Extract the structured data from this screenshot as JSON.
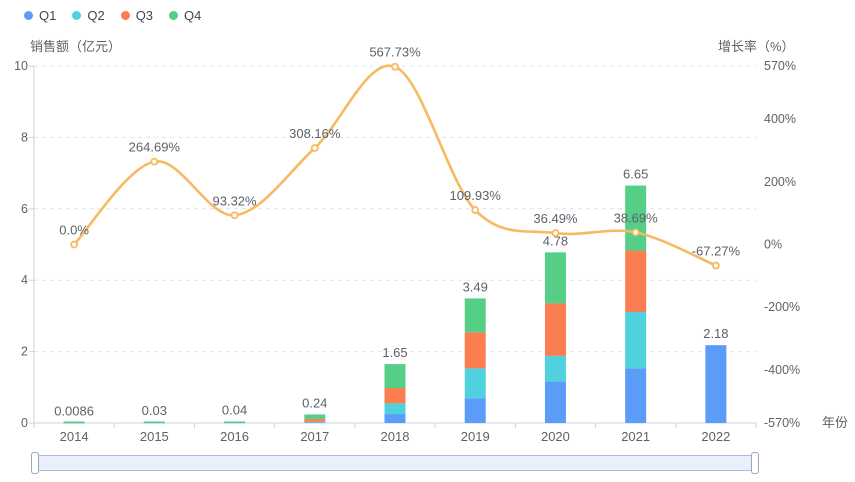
{
  "legend": {
    "items": [
      {
        "label": "Q1",
        "color": "#5B9CF8"
      },
      {
        "label": "Q2",
        "color": "#4FD1DE"
      },
      {
        "label": "Q3",
        "color": "#FA7E50"
      },
      {
        "label": "Q4",
        "color": "#55CE87"
      }
    ]
  },
  "chart_data": {
    "type": "bar",
    "subtype": "stacked-bars-with-line",
    "categories": [
      "2014",
      "2015",
      "2016",
      "2017",
      "2018",
      "2019",
      "2020",
      "2021",
      "2022"
    ],
    "series": [
      {
        "name": "Q1",
        "type": "bar",
        "color": "#5B9CF8",
        "values": [
          0.002,
          0.004,
          0.005,
          0.01,
          0.25,
          0.69,
          1.16,
          1.53,
          2.18
        ]
      },
      {
        "name": "Q2",
        "type": "bar",
        "color": "#4FD1DE",
        "values": [
          0.002,
          0.006,
          0.007,
          0.02,
          0.3,
          0.84,
          0.72,
          1.58,
          0
        ]
      },
      {
        "name": "Q3",
        "type": "bar",
        "color": "#FA7E50",
        "values": [
          0.002,
          0.008,
          0.012,
          0.08,
          0.43,
          1.01,
          1.47,
          1.72,
          0
        ]
      },
      {
        "name": "Q4",
        "type": "bar",
        "color": "#55CE87",
        "values": [
          0.0026,
          0.012,
          0.016,
          0.13,
          0.67,
          0.95,
          1.43,
          1.82,
          0
        ]
      }
    ],
    "bar_total_labels": [
      "0.0086",
      "0.03",
      "0.04",
      "0.24",
      "1.65",
      "3.49",
      "4.78",
      "6.65",
      "2.18"
    ],
    "line_series": {
      "name": "growth-rate",
      "type": "line",
      "color": "#F6BA62",
      "values": [
        0.0,
        264.69,
        93.32,
        308.16,
        567.73,
        109.93,
        36.49,
        38.69,
        -67.27
      ],
      "labels": [
        "0.0%",
        "264.69%",
        "93.32%",
        "308.16%",
        "567.73%",
        "109.93%",
        "36.49%",
        "38.69%",
        "-67.27%"
      ]
    },
    "y_left": {
      "name": "销售额（亿元）",
      "min": 0,
      "max": 10,
      "ticks": [
        10,
        8,
        6,
        4,
        2,
        0
      ]
    },
    "y_right": {
      "name": "增长率（%）",
      "min": -570,
      "max": 570,
      "ticks": [
        570,
        400,
        200,
        0,
        -200,
        -400,
        -570
      ],
      "tick_labels": [
        "570%",
        "400%",
        "200%",
        "0%",
        "-200%",
        "-400%",
        "-570%"
      ]
    },
    "x_axis": {
      "name": "年份"
    },
    "grid": {
      "show": true,
      "dashed": true
    },
    "legend_position": "top-left",
    "colors": {
      "grid_line": "#DCE3F1",
      "axis_line": "#CCD3E2",
      "tick_label": "#5D6269",
      "data_label": "#5D6269",
      "axis_name": "#5D6269",
      "marker_fill": "#FFFFFF",
      "slider_track": "#E9EFFB",
      "slider_border": "#ACBBDB",
      "slider_handle_border": "#98A7C6"
    }
  }
}
